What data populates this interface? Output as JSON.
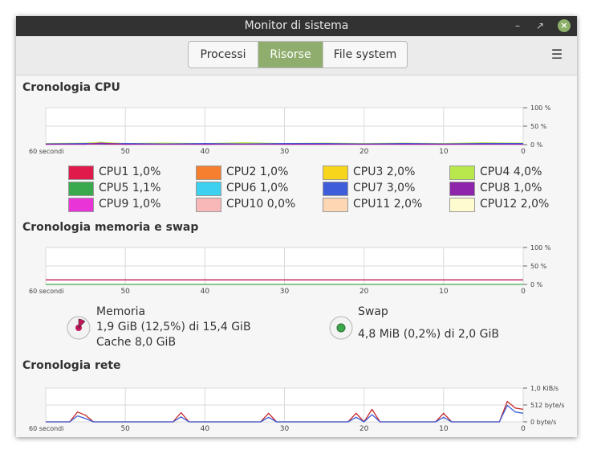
{
  "window": {
    "title": "Monitor di sistema"
  },
  "tabs": [
    {
      "label": "Processi",
      "active": false
    },
    {
      "label": "Risorse",
      "active": true
    },
    {
      "label": "File system",
      "active": false
    }
  ],
  "sections": {
    "cpu": "Cronologia CPU",
    "memory": "Cronologia memoria e swap",
    "network": "Cronologia rete"
  },
  "x_ticks": [
    "60 secondi",
    "50",
    "40",
    "30",
    "20",
    "10",
    "0"
  ],
  "percent_ticks": [
    "100 %",
    "50 %",
    "0 %"
  ],
  "net_ticks": [
    "1,0 KiB/s",
    "512 byte/s",
    "0 byte/s"
  ],
  "cpu_legend": [
    {
      "name": "CPU1",
      "value": "1,0%",
      "color": "#e01b4b"
    },
    {
      "name": "CPU2",
      "value": "1,0%",
      "color": "#f57e2f"
    },
    {
      "name": "CPU3",
      "value": "2,0%",
      "color": "#f6d51a"
    },
    {
      "name": "CPU4",
      "value": "4,0%",
      "color": "#b8e84b"
    },
    {
      "name": "CPU5",
      "value": "1,1%",
      "color": "#3aa84c"
    },
    {
      "name": "CPU6",
      "value": "1,0%",
      "color": "#3ed0ef"
    },
    {
      "name": "CPU7",
      "value": "3,0%",
      "color": "#3d5ed8"
    },
    {
      "name": "CPU8",
      "value": "1,0%",
      "color": "#8e24aa"
    },
    {
      "name": "CPU9",
      "value": "1,0%",
      "color": "#e935d8"
    },
    {
      "name": "CPU10",
      "value": "0,0%",
      "color": "#f9b8b8"
    },
    {
      "name": "CPU11",
      "value": "2,0%",
      "color": "#fdd7b3"
    },
    {
      "name": "CPU12",
      "value": "2,0%",
      "color": "#fefbcf"
    }
  ],
  "memory": {
    "label": "Memoria",
    "usage": "1,9 GiB (12,5%) di 15,4 GiB",
    "cache": "Cache 8,0 GiB",
    "percent": 12.5,
    "color": "#c2185b"
  },
  "swap": {
    "label": "Swap",
    "usage": "4,8 MiB (0,2%) di 2,0 GiB",
    "percent": 0.2,
    "color": "#3aa84c"
  },
  "chart_data": [
    {
      "type": "line",
      "title": "Cronologia CPU",
      "x": [
        60,
        55,
        53,
        50,
        45,
        40,
        35,
        30,
        25,
        20,
        15,
        10,
        5,
        0
      ],
      "ylim": [
        0,
        100
      ],
      "series": [
        {
          "name": "CPU1",
          "values": [
            1,
            2,
            1,
            1,
            2,
            1,
            2,
            1,
            1,
            2,
            1,
            1,
            2,
            1
          ]
        },
        {
          "name": "CPU4",
          "values": [
            3,
            4,
            6,
            3,
            4,
            3,
            5,
            3,
            4,
            3,
            4,
            3,
            5,
            4
          ]
        },
        {
          "name": "CPU7",
          "values": [
            2,
            3,
            2,
            3,
            2,
            3,
            2,
            3,
            3,
            2,
            3,
            2,
            3,
            3
          ]
        },
        {
          "name": "CPU8",
          "values": [
            1,
            1,
            4,
            1,
            1,
            1,
            1,
            1,
            1,
            1,
            1,
            1,
            1,
            1
          ]
        }
      ]
    },
    {
      "type": "line",
      "title": "Cronologia memoria e swap",
      "x": [
        60,
        0
      ],
      "ylim": [
        0,
        100
      ],
      "series": [
        {
          "name": "Memoria",
          "values": [
            12.5,
            12.5
          ]
        },
        {
          "name": "Swap",
          "values": [
            0.2,
            0.2
          ]
        }
      ]
    },
    {
      "type": "line",
      "title": "Cronologia rete",
      "x": [
        60,
        57,
        56,
        55,
        54,
        44,
        43,
        42,
        33,
        32,
        31,
        22,
        21,
        20,
        19,
        18,
        11,
        10,
        9,
        3,
        2,
        1,
        0
      ],
      "ylim": [
        0,
        1024
      ],
      "series": [
        {
          "name": "in",
          "values": [
            0,
            0,
            300,
            200,
            0,
            0,
            280,
            0,
            0,
            260,
            0,
            0,
            260,
            0,
            380,
            0,
            0,
            260,
            0,
            0,
            620,
            420,
            380
          ]
        },
        {
          "name": "out",
          "values": [
            0,
            0,
            180,
            100,
            0,
            0,
            150,
            0,
            0,
            140,
            0,
            0,
            140,
            0,
            220,
            0,
            0,
            140,
            0,
            0,
            500,
            300,
            260
          ]
        }
      ]
    }
  ]
}
